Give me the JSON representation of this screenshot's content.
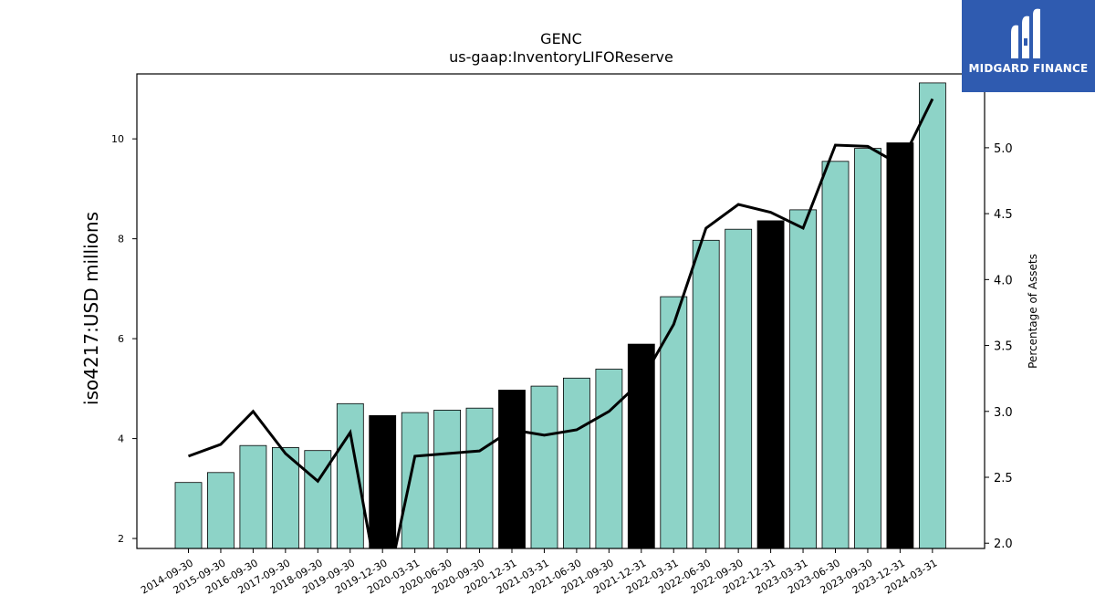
{
  "brand": {
    "name": "MIDGARD FINANCE",
    "bg": "#2f5bb0"
  },
  "chart_data": {
    "type": "bar",
    "title": "GENC",
    "subtitle": "us-gaap:InventoryLIFOReserve",
    "ylabel": "iso4217:USD  millions",
    "y2label": "Percentage of Assets",
    "ylim": [
      1.8,
      11.3
    ],
    "y2lim": [
      1.96,
      5.56
    ],
    "yticks": [
      2,
      4,
      6,
      8,
      10
    ],
    "y2ticks": [
      "2.0",
      "2.5",
      "3.0",
      "3.5",
      "4.0",
      "4.5",
      "5.0"
    ],
    "categories": [
      "2014-09-30",
      "2015-09-30",
      "2016-09-30",
      "2017-09-30",
      "2018-09-30",
      "2019-09-30",
      "2019-12-30",
      "2020-03-31",
      "2020-06-30",
      "2020-09-30",
      "2020-12-31",
      "2021-03-31",
      "2021-06-30",
      "2021-09-30",
      "2021-12-31",
      "2022-03-31",
      "2022-06-30",
      "2022-09-30",
      "2022-12-31",
      "2023-03-31",
      "2023-06-30",
      "2023-09-30",
      "2023-12-31",
      "2024-03-31"
    ],
    "series": [
      {
        "type": "bar",
        "axis": "left",
        "values": [
          3.12,
          3.32,
          3.86,
          3.82,
          3.76,
          4.7,
          4.46,
          4.52,
          4.57,
          4.61,
          4.97,
          5.05,
          5.21,
          5.39,
          5.89,
          6.84,
          7.97,
          8.19,
          8.36,
          8.58,
          9.55,
          9.81,
          9.92,
          11.12
        ],
        "highlight": [
          false,
          false,
          false,
          false,
          false,
          false,
          true,
          false,
          false,
          false,
          true,
          false,
          false,
          false,
          true,
          false,
          false,
          false,
          true,
          false,
          false,
          false,
          true,
          false
        ]
      },
      {
        "type": "line",
        "axis": "right",
        "values": [
          2.66,
          2.75,
          3.0,
          2.68,
          2.47,
          2.84,
          1.5,
          2.66,
          2.68,
          2.7,
          2.86,
          2.82,
          2.86,
          3.0,
          3.23,
          3.66,
          4.39,
          4.57,
          4.51,
          4.39,
          5.02,
          5.01,
          4.87,
          5.37
        ]
      }
    ],
    "colors": {
      "bar": "#8dd3c7",
      "highlight": "#000000",
      "line": "#000000"
    }
  }
}
